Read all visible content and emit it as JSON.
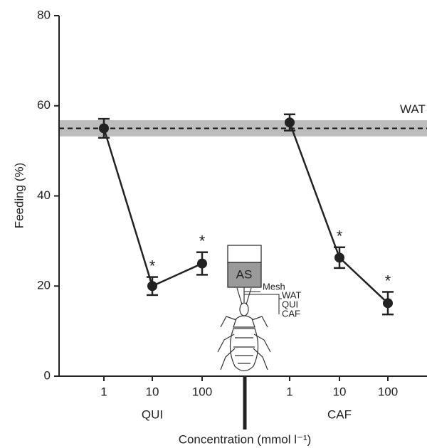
{
  "chart_data": {
    "type": "line",
    "y_label": "Feeding (%)",
    "x_label": "Concentration (mmol l⁻¹)",
    "ylim": [
      0,
      80
    ],
    "yticks": [
      0,
      20,
      40,
      60,
      80
    ],
    "color": "#222222",
    "reference": {
      "name": "WAT",
      "value": 55,
      "band": [
        53.2,
        56.8
      ],
      "band_color": "#bdbdbd"
    },
    "series": [
      {
        "name": "QUI",
        "categories": [
          "1",
          "10",
          "100"
        ],
        "values": [
          55,
          20,
          25
        ],
        "errors": [
          2.1,
          2,
          2.5
        ],
        "significance": [
          null,
          "*",
          "*"
        ]
      },
      {
        "name": "CAF",
        "categories": [
          "1",
          "10",
          "100"
        ],
        "values": [
          56.3,
          26.3,
          16.2
        ],
        "errors": [
          1.8,
          2.3,
          2.5
        ],
        "significance": [
          null,
          "*",
          "*"
        ]
      }
    ],
    "inset": {
      "chamber": "AS",
      "mesh": "Mesh",
      "solutions": [
        "WAT",
        "QUI",
        "CAF"
      ]
    }
  }
}
